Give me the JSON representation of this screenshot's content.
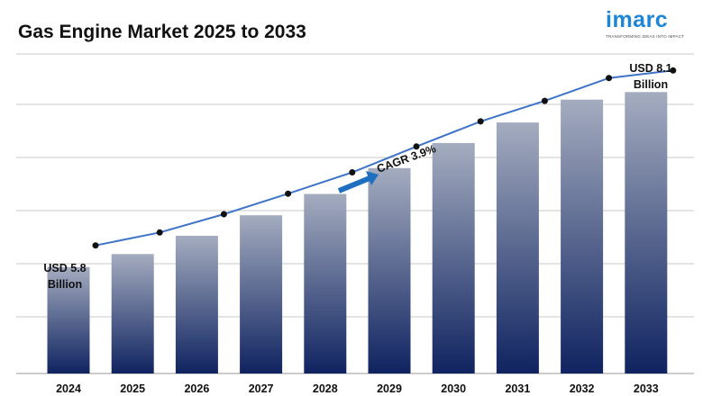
{
  "header": {
    "title": "Gas Engine Market 2025 to 2033"
  },
  "logo": {
    "word": "imarc",
    "tagline": "TRANSFORMING IDEAS INTO IMPACT"
  },
  "colors": {
    "bar_top": "#a4acbf",
    "bar_bottom": "#0f2360",
    "line": "#3f74c8",
    "marker": "#111111",
    "arrow": "#1f6fc0",
    "grid": "#c9c9c9"
  },
  "chart_data": {
    "type": "bar",
    "title": "Gas Engine Market 2025 to 2033",
    "categories": [
      "2024",
      "2025",
      "2026",
      "2027",
      "2028",
      "2029",
      "2030",
      "2031",
      "2032",
      "2033"
    ],
    "series": [
      {
        "values": [
          5.8,
          5.97,
          6.21,
          6.48,
          6.76,
          7.1,
          7.43,
          7.7,
          8.0,
          8.1
        ]
      }
    ],
    "ylim": [
      4.4,
      8.6
    ],
    "grid": true,
    "trend_line": true,
    "annotations": {
      "start_label_line1": "USD 5.8",
      "start_label_line2": "Billion",
      "end_label_line1": "USD 8.1",
      "end_label_line2": "Billion",
      "cagr": "CAGR 3.9%"
    }
  }
}
